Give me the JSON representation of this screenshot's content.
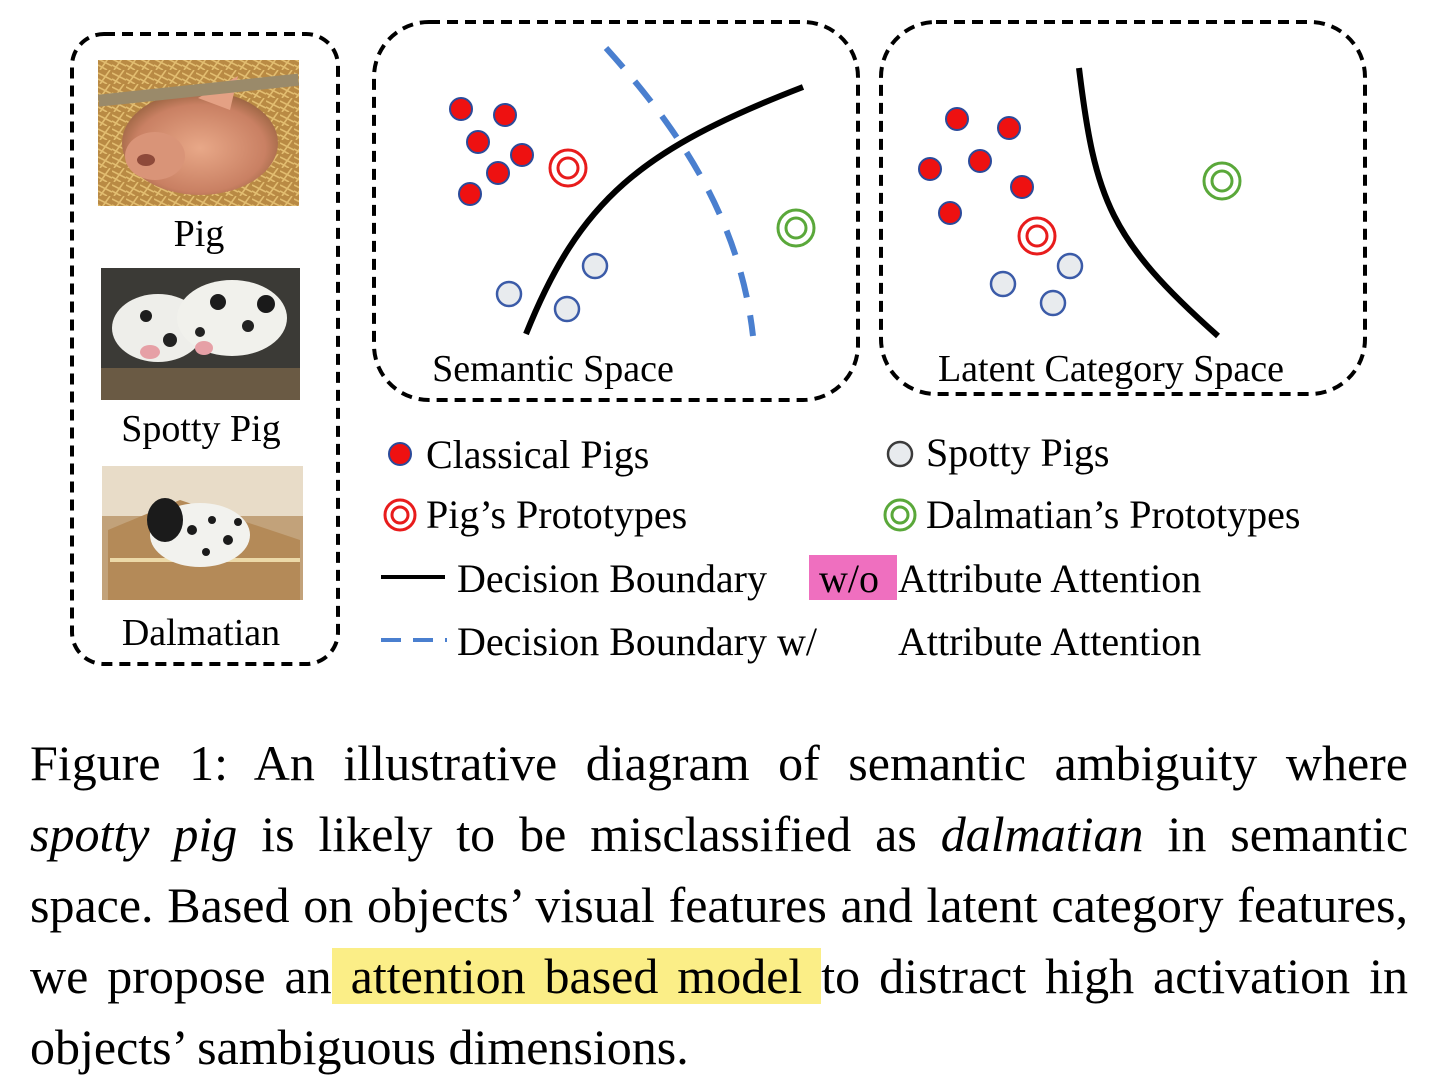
{
  "images": {
    "pig_label": "Pig",
    "spotty_pig_label": "Spotty Pig",
    "dalmatian_label": "Dalmatian"
  },
  "panels": {
    "semantic_title": "Semantic Space",
    "latent_title": "Latent Category Space"
  },
  "legend": {
    "classical_pigs": "Classical Pigs",
    "spotty_pigs": "Spotty Pigs",
    "pig_prototypes": "Pig’s Prototypes",
    "dalmatian_prototypes": "Dalmatian’s Prototypes",
    "boundary_wo_prefix": "Decision Boundary",
    "boundary_wo_tag": "w/o",
    "boundary_wo_suffix": "Attribute Attention",
    "boundary_w_prefix": "Decision Boundary w/",
    "boundary_w_suffix": "Attribute Attention"
  },
  "caption": {
    "p1": "Figure 1:  An illustrative diagram of semantic ambiguity where ",
    "em1": "spotty pig",
    "p2": " is likely to be misclassified as ",
    "em2": "dalmatian",
    "p3": " in semantic space. Based on objects’ visual features and latent category features, we propose an",
    "highlight": " attention based model ",
    "p4": "to distract high activation in objects’ sambiguous dimensions."
  },
  "colors": {
    "classical_pig_fill": "#ee1111",
    "classical_pig_stroke": "#2b4a9a",
    "spotty_pig_fill": "#e8ebee",
    "spotty_pig_stroke": "#3b5ba8",
    "pig_prototype": "#e81c1c",
    "dalmatian_prototype": "#5aa83a",
    "boundary_wo": "#000000",
    "boundary_w": "#4a7fcf",
    "tag_highlight": "#ef6fbf",
    "caption_highlight": "#fbee87"
  }
}
